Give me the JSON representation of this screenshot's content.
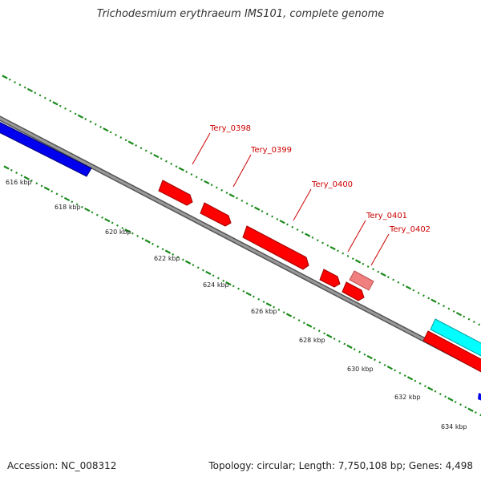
{
  "title": "Trichodesmium erythraeum IMS101, complete genome",
  "footer": {
    "accession": "Accession: NC_008312",
    "summary": "Topology: circular; Length: 7,750,108 bp; Genes: 4,498"
  },
  "colors": {
    "backbone": "#808080",
    "gene_forward": "#ff0000",
    "gene_highlight": "#f08080",
    "gene_other_strand": "#0000ee",
    "gene_cyan": "#00ffff",
    "tick": "#1a8a1a",
    "label": "#cc0000"
  },
  "scale_labels": [
    "616 kbp",
    "618 kbp",
    "620 kbp",
    "622 kbp",
    "624 kbp",
    "626 kbp",
    "628 kbp",
    "630 kbp",
    "632 kbp",
    "634 kbp"
  ],
  "gene_labels": [
    "Tery_0398",
    "Tery_0399",
    "Tery_0400",
    "Tery_0401",
    "Tery_0402"
  ]
}
